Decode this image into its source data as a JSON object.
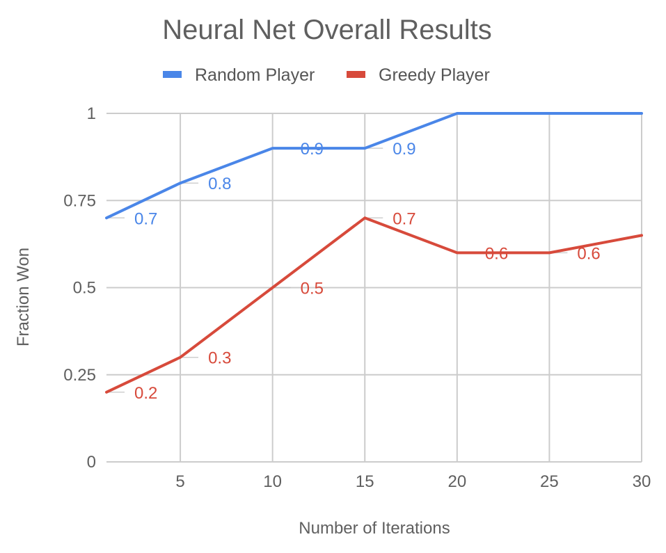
{
  "chart_data": {
    "type": "line",
    "title": "Neural Net Overall Results",
    "xlabel": "Number of Iterations",
    "ylabel": "Fraction Won",
    "xlim": [
      1,
      30
    ],
    "ylim": [
      0,
      1
    ],
    "x_ticks": [
      "5",
      "10",
      "15",
      "20",
      "25",
      "30"
    ],
    "y_ticks": [
      "0",
      "0.25",
      "0.5",
      "0.75",
      "1"
    ],
    "grid": true,
    "legend_position": "top",
    "series": [
      {
        "name": "Random Player",
        "color": "#4a86e8",
        "points": [
          {
            "x": 1,
            "y": 0.7,
            "label": "0.7"
          },
          {
            "x": 5,
            "y": 0.8,
            "label": "0.8"
          },
          {
            "x": 10,
            "y": 0.9,
            "label": "0.9"
          },
          {
            "x": 15,
            "y": 0.9,
            "label": "0.9"
          },
          {
            "x": 20,
            "y": 1.0,
            "label": null
          },
          {
            "x": 25,
            "y": 1.0,
            "label": null
          },
          {
            "x": 30,
            "y": 1.0,
            "label": null
          }
        ]
      },
      {
        "name": "Greedy Player",
        "color": "#d74a3b",
        "points": [
          {
            "x": 1,
            "y": 0.2,
            "label": "0.2"
          },
          {
            "x": 5,
            "y": 0.3,
            "label": "0.3"
          },
          {
            "x": 10,
            "y": 0.5,
            "label": "0.5"
          },
          {
            "x": 15,
            "y": 0.7,
            "label": "0.7"
          },
          {
            "x": 20,
            "y": 0.6,
            "label": "0.6"
          },
          {
            "x": 25,
            "y": 0.6,
            "label": "0.6"
          },
          {
            "x": 30,
            "y": 0.65,
            "label": null
          }
        ]
      }
    ]
  }
}
